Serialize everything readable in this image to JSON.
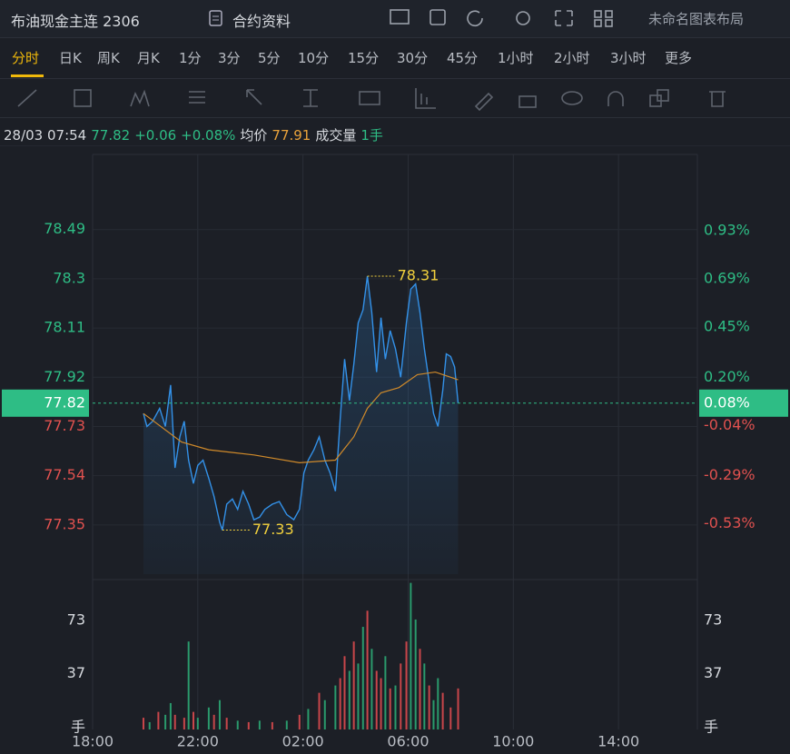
{
  "header": {
    "title": "布油现金主连 2306",
    "contract_info": "合约资料",
    "layout_name": "未命名图表布局"
  },
  "periods": [
    "分时",
    "日K",
    "周K",
    "月K",
    "1分",
    "3分",
    "5分",
    "10分",
    "15分",
    "30分",
    "45分",
    "1小时",
    "2小时",
    "3小时",
    "更多"
  ],
  "info_bar": {
    "datetime": "28/03 07:54",
    "price": "77.82",
    "change": "+0.06",
    "change_pct": "+0.08%",
    "avg_label": "均价",
    "avg": "77.91",
    "volume_label": "成交量",
    "volume": "1手"
  },
  "chart_data": [
    {
      "type": "line",
      "up_color": "#2ebd85",
      "down_color": "#e0514f",
      "xlim": [
        "18:00",
        "17:00"
      ],
      "ylim": [
        77.16,
        78.78
      ],
      "yticks": [
        78.49,
        78.3,
        78.11,
        77.92,
        77.73,
        77.54,
        77.35
      ],
      "y2lim": [
        -0.78,
        1.31
      ],
      "y2ticks": [
        {
          "value": 0.93,
          "label": "0.93%"
        },
        {
          "value": 0.69,
          "label": "0.69%"
        },
        {
          "value": 0.45,
          "label": "0.45%"
        },
        {
          "value": 0.2,
          "label": "0.20%"
        },
        {
          "value": -0.04,
          "label": "-0.04%"
        },
        {
          "value": -0.29,
          "label": "-0.29%"
        },
        {
          "value": -0.53,
          "label": "-0.53%"
        }
      ],
      "current": {
        "value": 77.82,
        "pct_label": "0.08%",
        "color": "#2ebd85"
      },
      "series": [
        {
          "color": "#3391e8",
          "x": [
            "19:56",
            "20:04",
            "20:17",
            "20:33",
            "20:46",
            "20:58",
            "21:08",
            "21:19",
            "21:29",
            "21:39",
            "21:50",
            "22:00",
            "22:12",
            "22:25",
            "22:37",
            "22:50",
            "22:56",
            "23:06",
            "23:19",
            "23:31",
            "23:43",
            "23:56",
            "00:08",
            "00:21",
            "00:33",
            "00:50",
            "01:06",
            "01:23",
            "01:39",
            "01:52",
            "02:02",
            "02:12",
            "02:25",
            "02:37",
            "02:50",
            "03:02",
            "03:14",
            "03:25",
            "03:35",
            "03:46",
            "03:56",
            "04:06",
            "04:17",
            "04:27",
            "04:37",
            "04:48",
            "04:58",
            "05:08",
            "05:19",
            "05:31",
            "05:43",
            "05:56",
            "06:06",
            "06:17",
            "06:27",
            "06:37",
            "06:48",
            "06:58",
            "07:08",
            "07:19",
            "07:27",
            "07:37",
            "07:46",
            "07:54"
          ],
          "values": [
            77.78,
            77.73,
            77.75,
            77.8,
            77.73,
            77.89,
            77.57,
            77.69,
            77.75,
            77.6,
            77.51,
            77.58,
            77.6,
            77.53,
            77.46,
            77.36,
            77.33,
            77.43,
            77.45,
            77.41,
            77.48,
            77.43,
            77.37,
            77.38,
            77.41,
            77.43,
            77.44,
            77.39,
            77.37,
            77.41,
            77.55,
            77.6,
            77.64,
            77.69,
            77.6,
            77.55,
            77.48,
            77.76,
            77.99,
            77.83,
            77.97,
            78.13,
            78.18,
            78.31,
            78.17,
            77.94,
            78.15,
            77.99,
            78.1,
            78.03,
            77.92,
            78.13,
            78.26,
            78.28,
            78.17,
            78.03,
            77.9,
            77.78,
            77.73,
            77.87,
            78.01,
            78.0,
            77.96,
            77.82
          ]
        },
        {
          "color": "#d08a2a",
          "x": [
            "19:56",
            "21:23",
            "22:25",
            "00:08",
            "01:52",
            "03:14",
            "03:56",
            "04:27",
            "04:58",
            "05:39",
            "06:21",
            "07:02",
            "07:54"
          ],
          "values": [
            77.78,
            77.67,
            77.64,
            77.62,
            77.59,
            77.6,
            77.69,
            77.8,
            77.86,
            77.88,
            77.93,
            77.94,
            77.91
          ]
        }
      ],
      "annotations": [
        {
          "x": "04:27",
          "value": 78.31,
          "color": "#f2d13d"
        },
        {
          "x": "22:56",
          "value": 77.33,
          "color": "#f2d13d"
        }
      ]
    },
    {
      "type": "bar",
      "xlim": [
        "18:00",
        "17:00"
      ],
      "ylim": [
        0,
        101
      ],
      "yticks": [
        {
          "value": 0,
          "label": "手"
        },
        37,
        73
      ],
      "xticks": [
        "18:00",
        "22:00",
        "02:00",
        "06:00",
        "10:00",
        "14:00"
      ],
      "x": [
        "19:56",
        "20:10",
        "20:30",
        "20:46",
        "20:58",
        "21:08",
        "21:29",
        "21:39",
        "21:50",
        "22:00",
        "22:25",
        "22:37",
        "22:50",
        "23:06",
        "23:31",
        "23:56",
        "00:21",
        "00:50",
        "01:23",
        "01:52",
        "02:12",
        "02:37",
        "02:50",
        "03:14",
        "03:25",
        "03:35",
        "03:46",
        "03:56",
        "04:06",
        "04:17",
        "04:27",
        "04:37",
        "04:48",
        "04:58",
        "05:08",
        "05:19",
        "05:31",
        "05:43",
        "05:56",
        "06:06",
        "06:17",
        "06:27",
        "06:37",
        "06:48",
        "06:58",
        "07:08",
        "07:19",
        "07:37",
        "07:54"
      ],
      "values": [
        8,
        5,
        12,
        10,
        18,
        10,
        8,
        60,
        12,
        8,
        15,
        10,
        20,
        8,
        6,
        5,
        6,
        5,
        6,
        10,
        14,
        25,
        20,
        30,
        35,
        50,
        40,
        60,
        45,
        70,
        81,
        55,
        40,
        35,
        50,
        28,
        30,
        45,
        60,
        100,
        75,
        55,
        45,
        30,
        20,
        35,
        25,
        15,
        28
      ],
      "colors": [
        "#c8464a",
        "#2a9a6c",
        "#c8464a",
        "#2a9a6c",
        "#2a9a6c",
        "#c8464a",
        "#c8464a",
        "#2a9a6c",
        "#c8464a",
        "#2a9a6c",
        "#2a9a6c",
        "#c8464a",
        "#2a9a6c",
        "#c8464a",
        "#2a9a6c",
        "#c8464a",
        "#2a9a6c",
        "#c8464a",
        "#2a9a6c",
        "#c8464a",
        "#2a9a6c",
        "#c8464a",
        "#2a9a6c",
        "#2a9a6c",
        "#c8464a",
        "#c8464a",
        "#2a9a6c",
        "#c8464a",
        "#2a9a6c",
        "#2a9a6c",
        "#c8464a",
        "#2a9a6c",
        "#c8464a",
        "#c8464a",
        "#2a9a6c",
        "#c8464a",
        "#2a9a6c",
        "#c8464a",
        "#c8464a",
        "#2a9a6c",
        "#2a9a6c",
        "#c8464a",
        "#2a9a6c",
        "#c8464a",
        "#2a9a6c",
        "#2a9a6c",
        "#c8464a",
        "#c8464a",
        "#c8464a"
      ]
    }
  ]
}
